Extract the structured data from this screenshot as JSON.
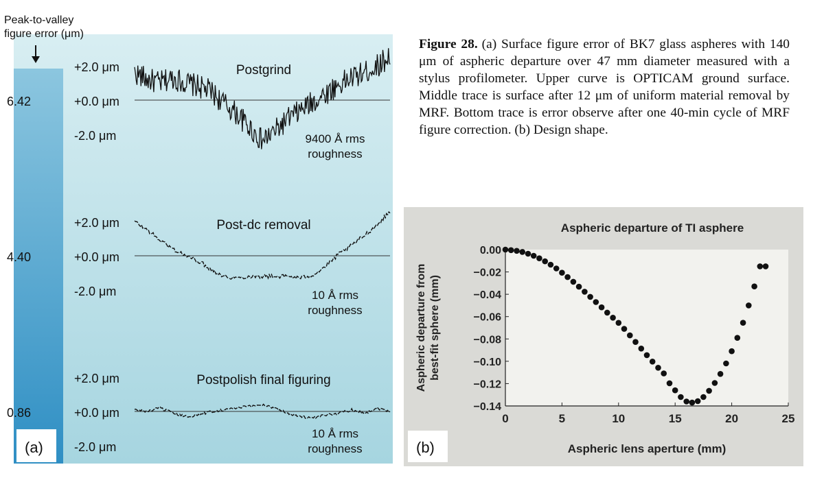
{
  "caption": {
    "label": "Figure 28.",
    "text": "(a) Surface figure error of BK7 glass aspheres with 140 μm of aspheric departure over 47 mm diameter measured with a stylus profilometer. Upper curve is OPTICAM ground surface. Middle trace is surface after 12 μm of uniform material removal by MRF. Bottom trace is error observe after one 40-min cycle of MRF figure correction. (b) Design shape."
  },
  "colors": {
    "panel_a_gradient_top": "#d6ecf0",
    "panel_a_gradient_bottom": "#a9d7e2",
    "scale_bar_top": "#7fbfdc",
    "scale_bar_bottom": "#2f8fc4",
    "trace": "#111111",
    "panel_b_background": "#dcdcd8",
    "panel_b_plot": "#f4f4f1"
  },
  "chart_data": [
    {
      "type": "line",
      "panel_label": "(a)",
      "pv_header": "Peak-to-valley\nfigure error (μm)",
      "tick_labels": [
        "+2.0 μm",
        "+0.0 μm",
        "-2.0 μm"
      ],
      "ylim": [
        -2.0,
        2.0
      ],
      "series": [
        {
          "name": "Postgrind",
          "pv_value": "6.42",
          "roughness": [
            "9400 Å rms",
            "roughness"
          ],
          "noise": 0.7,
          "x": [
            0,
            0.05,
            0.1,
            0.15,
            0.2,
            0.25,
            0.3,
            0.35,
            0.4,
            0.45,
            0.5,
            0.55,
            0.6,
            0.65,
            0.7,
            0.75,
            0.8,
            0.85,
            0.9,
            0.95,
            1.0
          ],
          "values": [
            1.6,
            1.2,
            1.0,
            1.3,
            1.0,
            0.8,
            0.5,
            -0.2,
            -0.8,
            -1.6,
            -2.4,
            -1.8,
            -1.1,
            -0.6,
            -0.1,
            0.4,
            0.9,
            1.3,
            1.6,
            2.0,
            2.6
          ]
        },
        {
          "name": "Post-dc removal",
          "pv_value": "4.40",
          "roughness": [
            "10 Å rms",
            "roughness"
          ],
          "noise": 0.12,
          "x": [
            0,
            0.05,
            0.1,
            0.15,
            0.2,
            0.25,
            0.3,
            0.35,
            0.4,
            0.45,
            0.5,
            0.55,
            0.6,
            0.65,
            0.7,
            0.75,
            0.8,
            0.85,
            0.9,
            0.95,
            1.0
          ],
          "values": [
            2.0,
            1.5,
            0.9,
            0.4,
            0.0,
            -0.3,
            -0.8,
            -1.2,
            -1.3,
            -1.2,
            -1.2,
            -1.2,
            -1.2,
            -1.3,
            -1.1,
            -0.6,
            0.1,
            0.6,
            1.2,
            1.8,
            2.6
          ]
        },
        {
          "name": "Postpolish final figuring",
          "pv_value": "0.86",
          "roughness": [
            "10 Å rms",
            "roughness"
          ],
          "noise": 0.08,
          "x": [
            0,
            0.05,
            0.1,
            0.15,
            0.2,
            0.25,
            0.3,
            0.35,
            0.4,
            0.45,
            0.5,
            0.55,
            0.6,
            0.65,
            0.7,
            0.75,
            0.8,
            0.85,
            0.9,
            0.95,
            1.0
          ],
          "values": [
            0.1,
            0.0,
            0.2,
            -0.1,
            -0.3,
            -0.2,
            0.0,
            0.1,
            0.2,
            0.3,
            0.4,
            0.2,
            -0.1,
            -0.3,
            -0.4,
            -0.2,
            -0.1,
            0.1,
            -0.1,
            0.2,
            0.0
          ]
        }
      ]
    },
    {
      "type": "scatter",
      "panel_label": "(b)",
      "title": "Aspheric departure of TI asphere",
      "xlabel": "Aspheric lens aperture (mm)",
      "ylabel": "Aspheric departure from\nbest-fit sphere (mm)",
      "xlim": [
        0,
        25
      ],
      "ylim": [
        -0.14,
        0.0
      ],
      "xticks": [
        0,
        5,
        10,
        15,
        20,
        25
      ],
      "yticks": [
        "0.00",
        "−0.02",
        "−0.04",
        "−0.06",
        "−0.08",
        "−0.10",
        "−0.12",
        "−0.14"
      ],
      "x": [
        0,
        0.5,
        1,
        1.5,
        2,
        2.5,
        3,
        3.5,
        4,
        4.5,
        5,
        5.5,
        6,
        6.5,
        7,
        7.5,
        8,
        8.5,
        9,
        9.5,
        10,
        10.5,
        11,
        11.5,
        12,
        12.5,
        13,
        13.5,
        14,
        14.5,
        15,
        15.5,
        16,
        16.5,
        17,
        17.5,
        18,
        18.5,
        19,
        19.5,
        20,
        20.5,
        21,
        21.5,
        22,
        22.5,
        23
      ],
      "y": [
        0.0,
        -0.0005,
        -0.0011,
        -0.0021,
        -0.0037,
        -0.0055,
        -0.0078,
        -0.0105,
        -0.0135,
        -0.0169,
        -0.0207,
        -0.0246,
        -0.0288,
        -0.0332,
        -0.0377,
        -0.0423,
        -0.047,
        -0.0517,
        -0.0564,
        -0.061,
        -0.0656,
        -0.071,
        -0.0768,
        -0.0827,
        -0.0886,
        -0.0945,
        -0.1003,
        -0.1058,
        -0.1109,
        -0.1197,
        -0.126,
        -0.132,
        -0.136,
        -0.137,
        -0.1357,
        -0.132,
        -0.1264,
        -0.1194,
        -0.1113,
        -0.1019,
        -0.091,
        -0.079,
        -0.0655,
        -0.05,
        -0.033,
        -0.015,
        -0.015
      ]
    }
  ]
}
